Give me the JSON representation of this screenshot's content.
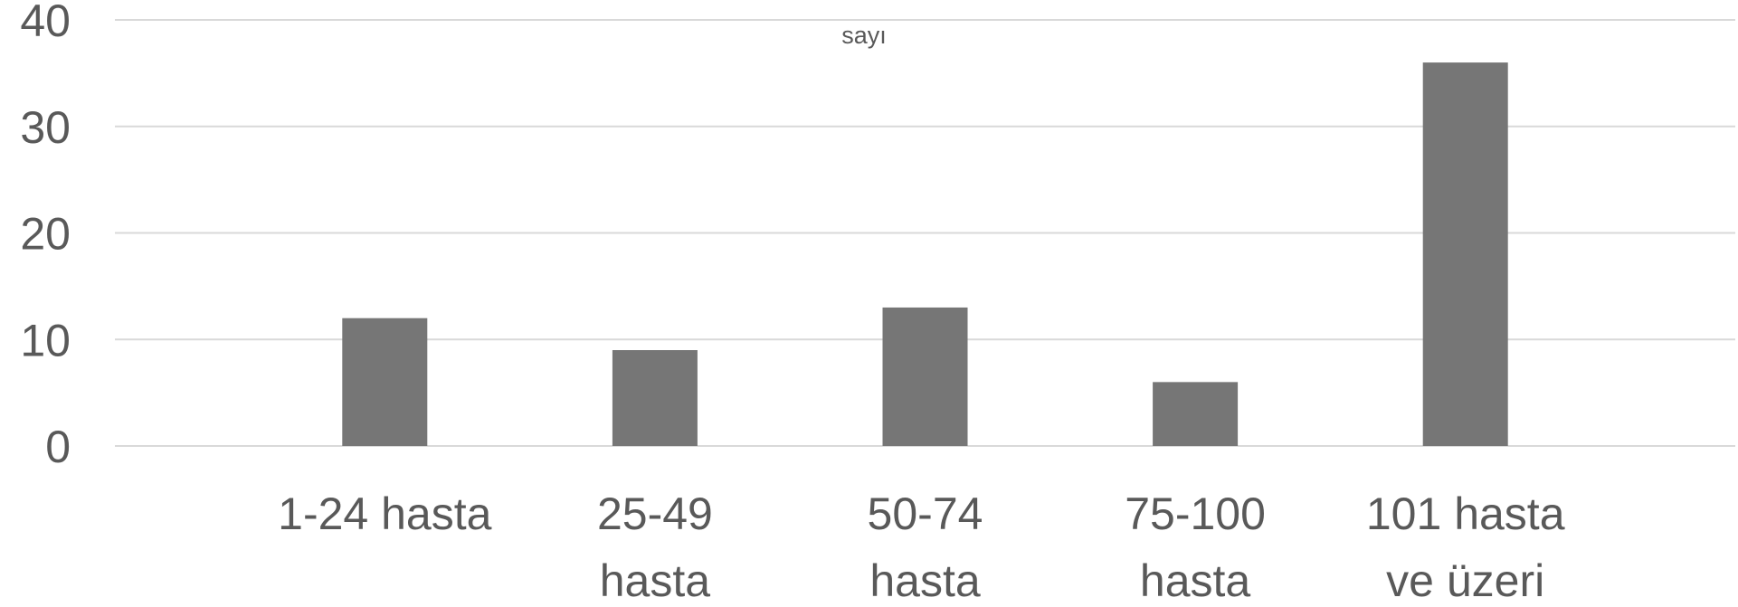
{
  "chart_data": {
    "type": "bar",
    "title": "sayı",
    "categories": [
      [
        "1-24 hasta"
      ],
      [
        "25-49",
        "hasta"
      ],
      [
        "50-74",
        "hasta"
      ],
      [
        "75-100",
        "hasta"
      ],
      [
        "101 hasta",
        "ve üzeri"
      ]
    ],
    "values": [
      12,
      9,
      13,
      6,
      36
    ],
    "ylim": [
      0,
      40
    ],
    "yticks": [
      0,
      10,
      20,
      30,
      40
    ],
    "grid": true,
    "bar_color": "#767676"
  }
}
